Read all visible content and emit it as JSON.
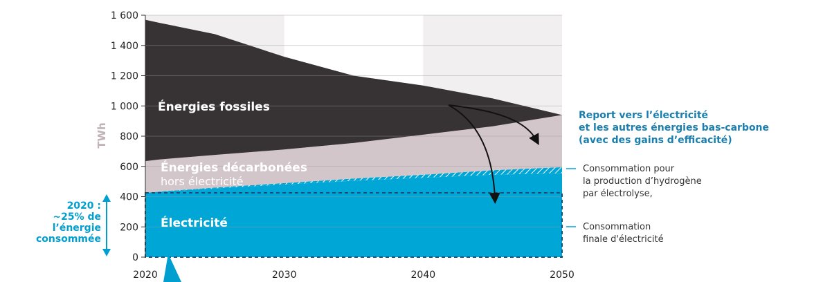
{
  "chart_data": {
    "type": "area",
    "ylabel": "TWh",
    "ylim": [
      0,
      1600
    ],
    "xlim": [
      2020,
      2050
    ],
    "y_ticks": [
      "0",
      "200",
      "400",
      "600",
      "800",
      "1 000",
      "1 200",
      "1 400",
      "1 600"
    ],
    "y_tick_values": [
      0,
      200,
      400,
      600,
      800,
      1000,
      1200,
      1400,
      1600
    ],
    "x_ticks": [
      "2020",
      "2030",
      "2040",
      "2050"
    ],
    "x_tick_values": [
      2020,
      2030,
      2040,
      2050
    ],
    "x": [
      2020,
      2021,
      2025,
      2030,
      2035,
      2040,
      2045,
      2050
    ],
    "series": [
      {
        "name": "Électricité",
        "color": "#00a6d6",
        "values": [
          425,
          432,
          455,
          480,
          505,
          525,
          545,
          555
        ]
      },
      {
        "name": "Consommation pour la production d'hydrogène par électrolyse",
        "color": "#5fc2e2",
        "values": [
          0,
          2,
          5,
          10,
          15,
          20,
          30,
          40
        ]
      },
      {
        "name": "Énergies décarbonées hors électricité",
        "color": "#d3c6ca",
        "values": [
          210,
          212,
          216,
          222,
          235,
          265,
          290,
          345
        ]
      },
      {
        "name": "Énergies fossiles",
        "color": "#373233",
        "values": [
          935,
          904,
          799,
          613,
          445,
          325,
          185,
          0
        ]
      }
    ],
    "annotations": {
      "fossiles": "Énergies fossiles",
      "decarbonees_1": "Énergies décarbonées",
      "decarbonees_2": "hors électricité",
      "electricite": "Électricité",
      "report_1": "Report vers l’électricité",
      "report_2": "et les autres énergies bas-carbone",
      "report_3": "(avec des gains d’efficacité)",
      "hydrogen_1": "Consommation pour",
      "hydrogen_2": "la production d’hydrogène",
      "hydrogen_3": "par électrolyse,",
      "finale_1": "Consommation",
      "finale_2": "finale d'électricité",
      "callout_1": "2020 :",
      "callout_2": "~25% de",
      "callout_3": "l’énergie",
      "callout_4": "consommée"
    },
    "colors": {
      "fossiles": "#373233",
      "decarbonees": "#d3c6ca",
      "electricite": "#00a6d6",
      "accent": "#009fd0"
    }
  }
}
